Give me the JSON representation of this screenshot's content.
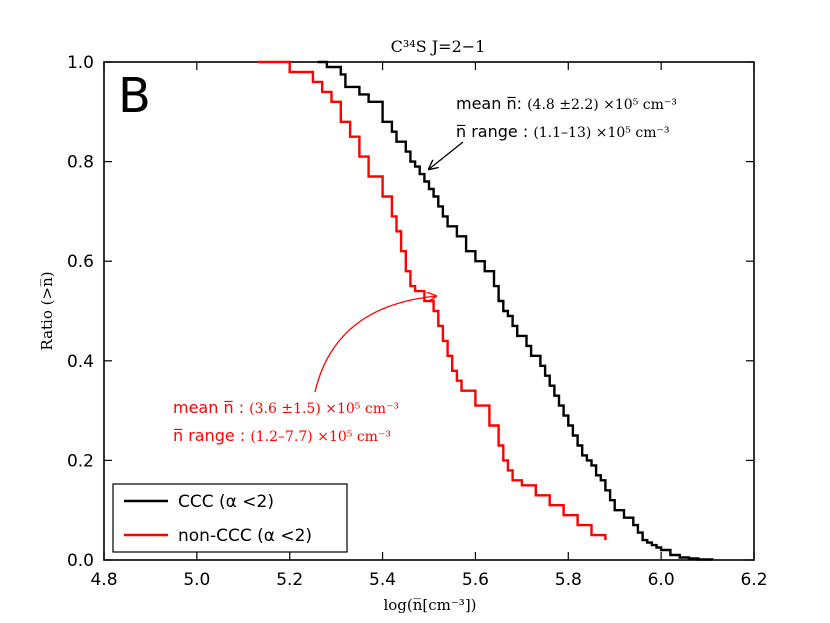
{
  "chart_data": {
    "type": "line",
    "panel_label": "B",
    "title": "C³⁴S J=2−1",
    "xlabel": "log(n̅[cm⁻³])",
    "ylabel": "Ratio (>n̅)",
    "xlim": [
      4.8,
      6.2
    ],
    "ylim": [
      0.0,
      1.0
    ],
    "xticks": [
      {
        "value": 4.8,
        "label": "4.8"
      },
      {
        "value": 5.0,
        "label": "5.0"
      },
      {
        "value": 5.2,
        "label": "5.2"
      },
      {
        "value": 5.4,
        "label": "5.4"
      },
      {
        "value": 5.6,
        "label": "5.6"
      },
      {
        "value": 5.8,
        "label": "5.8"
      },
      {
        "value": 6.0,
        "label": "6.0"
      },
      {
        "value": 6.2,
        "label": "6.2"
      }
    ],
    "yticks": [
      {
        "value": 0.0,
        "label": "0.0"
      },
      {
        "value": 0.2,
        "label": "0.2"
      },
      {
        "value": 0.4,
        "label": "0.4"
      },
      {
        "value": 0.6,
        "label": "0.6"
      },
      {
        "value": 0.8,
        "label": "0.8"
      },
      {
        "value": 1.0,
        "label": "1.0"
      }
    ],
    "series": [
      {
        "name": "CCC (α <2)",
        "color": "#000000",
        "x": [
          5.26,
          5.28,
          5.31,
          5.32,
          5.35,
          5.37,
          5.4,
          5.42,
          5.43,
          5.45,
          5.46,
          5.47,
          5.48,
          5.49,
          5.5,
          5.51,
          5.52,
          5.53,
          5.54,
          5.56,
          5.58,
          5.6,
          5.62,
          5.64,
          5.65,
          5.66,
          5.67,
          5.68,
          5.69,
          5.71,
          5.72,
          5.74,
          5.75,
          5.76,
          5.77,
          5.78,
          5.79,
          5.8,
          5.81,
          5.82,
          5.83,
          5.84,
          5.85,
          5.86,
          5.87,
          5.88,
          5.89,
          5.9,
          5.92,
          5.94,
          5.95,
          5.96,
          5.97,
          5.98,
          5.99,
          6.0,
          6.02,
          6.04,
          6.06,
          6.08,
          6.11
        ],
        "y": [
          1.0,
          0.99,
          0.975,
          0.95,
          0.935,
          0.92,
          0.88,
          0.86,
          0.84,
          0.82,
          0.8,
          0.79,
          0.775,
          0.76,
          0.745,
          0.73,
          0.71,
          0.69,
          0.67,
          0.65,
          0.62,
          0.6,
          0.58,
          0.55,
          0.52,
          0.5,
          0.49,
          0.47,
          0.45,
          0.43,
          0.41,
          0.39,
          0.37,
          0.35,
          0.33,
          0.31,
          0.29,
          0.27,
          0.25,
          0.23,
          0.21,
          0.2,
          0.19,
          0.17,
          0.16,
          0.14,
          0.12,
          0.1,
          0.085,
          0.07,
          0.055,
          0.04,
          0.035,
          0.03,
          0.025,
          0.02,
          0.01,
          0.005,
          0.003,
          0.001,
          0.0
        ],
        "y_comment": "stepped empirical cumulative distribution"
      },
      {
        "name": "non-CCC (α <2)",
        "color": "#ff0000",
        "x": [
          5.13,
          5.2,
          5.25,
          5.27,
          5.29,
          5.31,
          5.33,
          5.35,
          5.37,
          5.4,
          5.42,
          5.43,
          5.44,
          5.45,
          5.46,
          5.47,
          5.49,
          5.51,
          5.52,
          5.53,
          5.54,
          5.55,
          5.56,
          5.57,
          5.6,
          5.63,
          5.65,
          5.66,
          5.67,
          5.68,
          5.7,
          5.73,
          5.76,
          5.79,
          5.82,
          5.85,
          5.88
        ],
        "y": [
          1.0,
          0.98,
          0.96,
          0.94,
          0.92,
          0.88,
          0.85,
          0.81,
          0.77,
          0.73,
          0.69,
          0.66,
          0.62,
          0.58,
          0.55,
          0.54,
          0.52,
          0.5,
          0.47,
          0.44,
          0.41,
          0.38,
          0.36,
          0.34,
          0.31,
          0.27,
          0.23,
          0.2,
          0.18,
          0.16,
          0.15,
          0.13,
          0.11,
          0.09,
          0.07,
          0.05,
          0.04
        ],
        "y_comment": "stepped empirical cumulative distribution"
      }
    ],
    "annotations": [
      {
        "id": "ccc",
        "color": "#000000",
        "line1_label": "mean n̅: ",
        "line1_value": "(4.8 ±2.2) ×10⁵ cm⁻³",
        "line2_label": "n̅ range : ",
        "line2_value": "(1.1–13) ×10⁵ cm⁻³",
        "arrow_to": {
          "x": 5.5,
          "y": 0.785
        }
      },
      {
        "id": "nonccc",
        "color": "#ff0000",
        "line1_label": "mean n̅ : ",
        "line1_value": "(3.6 ±1.5) ×10⁵ cm⁻³",
        "line2_label": "n̅ range : ",
        "line2_value": "(1.2–7.7) ×10⁵ cm⁻³",
        "arrow_to": {
          "x": 5.515,
          "y": 0.53
        }
      }
    ],
    "legend_position": "bottom-left"
  }
}
